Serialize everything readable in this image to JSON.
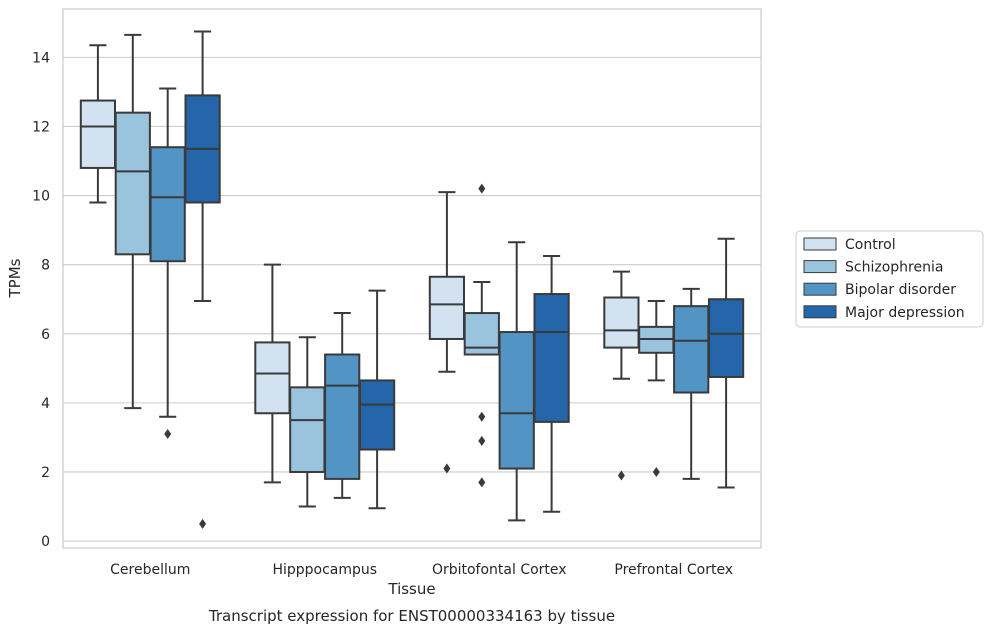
{
  "chart_data": {
    "type": "box",
    "caption": "Transcript expression for ENST00000334163 by tissue",
    "xlabel": "Tissue",
    "ylabel": "TPMs",
    "ylim": [
      -0.2,
      15.4
    ],
    "yticks": [
      0,
      2,
      4,
      6,
      8,
      10,
      12,
      14
    ],
    "grid": "horizontal",
    "legend_position": "right",
    "categories": [
      "Cerebellum",
      "Hipppocampus",
      "Orbitofontal Cortex",
      "Prefrontal Cortex"
    ],
    "series": [
      {
        "name": "Control",
        "color": "#d2e2f1",
        "boxes": [
          {
            "whislo": 9.8,
            "q1": 10.8,
            "med": 12.0,
            "q3": 12.75,
            "whishi": 14.35,
            "fliers": []
          },
          {
            "whislo": 1.7,
            "q1": 3.7,
            "med": 4.85,
            "q3": 5.75,
            "whishi": 8.0,
            "fliers": []
          },
          {
            "whislo": 4.9,
            "q1": 5.85,
            "med": 6.85,
            "q3": 7.65,
            "whishi": 10.1,
            "fliers": [
              2.1
            ]
          },
          {
            "whislo": 4.7,
            "q1": 5.6,
            "med": 6.1,
            "q3": 7.05,
            "whishi": 7.8,
            "fliers": [
              1.9
            ]
          }
        ]
      },
      {
        "name": "Schizophrenia",
        "color": "#9ac3de",
        "boxes": [
          {
            "whislo": 3.85,
            "q1": 8.3,
            "med": 10.7,
            "q3": 12.4,
            "whishi": 14.65,
            "fliers": []
          },
          {
            "whislo": 1.0,
            "q1": 2.0,
            "med": 3.5,
            "q3": 4.45,
            "whishi": 5.9,
            "fliers": []
          },
          {
            "whislo": 5.4,
            "q1": 5.4,
            "med": 5.6,
            "q3": 6.6,
            "whishi": 7.5,
            "fliers": [
              10.2,
              3.6,
              2.9,
              1.7
            ]
          },
          {
            "whislo": 4.65,
            "q1": 5.45,
            "med": 5.85,
            "q3": 6.2,
            "whishi": 6.95,
            "fliers": [
              2.0
            ]
          }
        ]
      },
      {
        "name": "Bipolar disorder",
        "color": "#5295c5",
        "boxes": [
          {
            "whislo": 3.6,
            "q1": 8.1,
            "med": 9.95,
            "q3": 11.4,
            "whishi": 13.1,
            "fliers": [
              3.1
            ]
          },
          {
            "whislo": 1.25,
            "q1": 1.8,
            "med": 4.5,
            "q3": 5.4,
            "whishi": 6.6,
            "fliers": []
          },
          {
            "whislo": 0.6,
            "q1": 2.1,
            "med": 3.7,
            "q3": 6.05,
            "whishi": 8.65,
            "fliers": []
          },
          {
            "whislo": 1.8,
            "q1": 4.3,
            "med": 5.8,
            "q3": 6.8,
            "whishi": 7.3,
            "fliers": []
          }
        ]
      },
      {
        "name": "Major depression",
        "color": "#2466a9",
        "boxes": [
          {
            "whislo": 6.95,
            "q1": 9.8,
            "med": 11.35,
            "q3": 12.9,
            "whishi": 14.75,
            "fliers": [
              0.5
            ]
          },
          {
            "whislo": 0.95,
            "q1": 2.65,
            "med": 3.95,
            "q3": 4.65,
            "whishi": 7.25,
            "fliers": []
          },
          {
            "whislo": 0.85,
            "q1": 3.45,
            "med": 6.05,
            "q3": 7.15,
            "whishi": 8.25,
            "fliers": []
          },
          {
            "whislo": 1.55,
            "q1": 4.75,
            "med": 6.0,
            "q3": 7.0,
            "whishi": 8.75,
            "fliers": []
          }
        ]
      }
    ]
  }
}
